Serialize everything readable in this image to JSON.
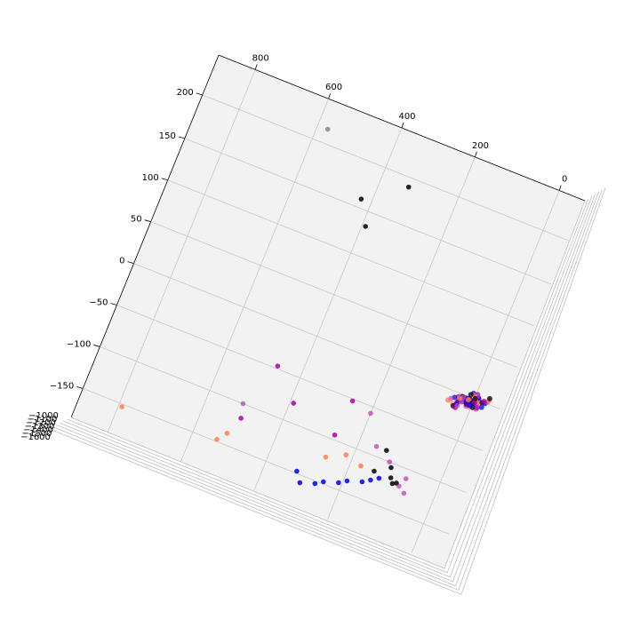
{
  "chart_data": {
    "type": "scatter",
    "title": "",
    "projection": "3d",
    "grid": true,
    "axes": {
      "x": {
        "label": "",
        "ticks": [
          "800",
          "600",
          "400",
          "200",
          "0"
        ]
      },
      "y": {
        "label": "",
        "ticks": [
          "200",
          "150",
          "100",
          "50",
          "0",
          "−50",
          "−100",
          "−150"
        ]
      },
      "z": {
        "label": "",
        "ticks": [
          "−1600",
          "−1500",
          "−1400",
          "−1300",
          "−1200",
          "−1100",
          "−1000"
        ],
        "note": "tick labels overlap at the left corner"
      }
    },
    "series": [
      {
        "color": "#000000",
        "points": [
          {
            "x": 370,
            "y": 175
          },
          {
            "x": 480,
            "y": 145
          },
          {
            "x": 440,
            "y": 120
          },
          {
            "x": 150,
            "y": -90
          },
          {
            "x": 120,
            "y": -105
          },
          {
            "x": 160,
            "y": -115
          },
          {
            "x": 110,
            "y": -115
          },
          {
            "x": 100,
            "y": -120
          },
          {
            "x": 90,
            "y": -118
          }
        ]
      },
      {
        "color": "#888888",
        "points": [
          {
            "x": 640,
            "y": 200
          }
        ]
      },
      {
        "color": "#aa00aa",
        "points": [
          {
            "x": 520,
            "y": -50
          },
          {
            "x": 440,
            "y": -80
          },
          {
            "x": 560,
            "y": -115
          },
          {
            "x": 300,
            "y": -95
          },
          {
            "x": 290,
            "y": -55
          },
          {
            "x": 230,
            "y": -60
          },
          {
            "x": 570,
            "y": -100
          },
          {
            "x": 180,
            "y": -90
          },
          {
            "x": 130,
            "y": -100
          },
          {
            "x": 80,
            "y": -120
          },
          {
            "x": 60,
            "y": -125
          },
          {
            "x": 70,
            "y": -110
          }
        ]
      },
      {
        "color": "#0000ee",
        "points": [
          {
            "x": 360,
            "y": -145
          },
          {
            "x": 340,
            "y": -155
          },
          {
            "x": 300,
            "y": -150
          },
          {
            "x": 280,
            "y": -145
          },
          {
            "x": 240,
            "y": -140
          },
          {
            "x": 220,
            "y": -135
          },
          {
            "x": 180,
            "y": -130
          },
          {
            "x": 160,
            "y": -125
          },
          {
            "x": 140,
            "y": -120
          }
        ]
      },
      {
        "color": "#ff7f50",
        "points": [
          {
            "x": 880,
            "y": -150
          },
          {
            "x": 600,
            "y": -145
          },
          {
            "x": 580,
            "y": -135
          },
          {
            "x": 300,
            "y": -120
          },
          {
            "x": 250,
            "y": -110
          },
          {
            "x": 200,
            "y": -115
          }
        ]
      }
    ]
  }
}
